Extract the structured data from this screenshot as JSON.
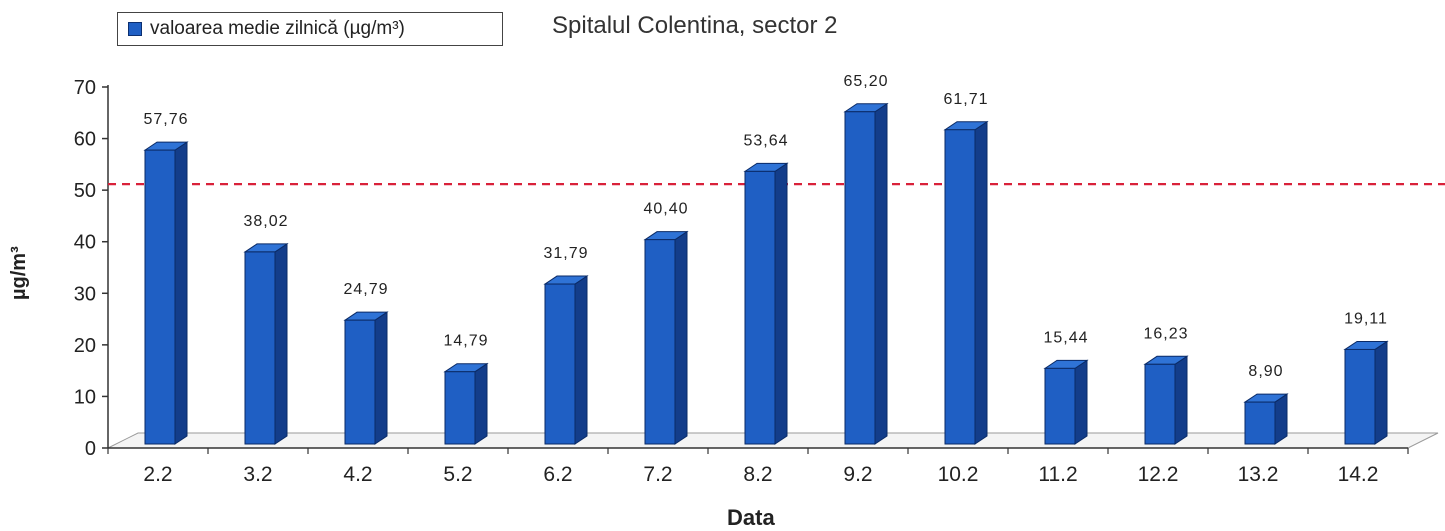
{
  "chart_data": {
    "type": "bar",
    "title": "Spitalul Colentina, sector 2",
    "xlabel": "Data",
    "ylabel": "µg/m³",
    "ylim": [
      0,
      70
    ],
    "yticks": [
      0,
      10,
      20,
      30,
      40,
      50,
      60,
      70
    ],
    "categories": [
      "2.2",
      "3.2",
      "4.2",
      "5.2",
      "6.2",
      "7.2",
      "8.2",
      "9.2",
      "10.2",
      "11.2",
      "12.2",
      "13.2",
      "14.2"
    ],
    "series": [
      {
        "name": "valoarea medie zilnică (µg/m³)",
        "values": [
          57.76,
          38.02,
          24.79,
          14.79,
          31.79,
          40.4,
          53.64,
          65.2,
          61.71,
          15.44,
          16.23,
          8.9,
          19.11
        ],
        "labels": [
          "57,76",
          "38,02",
          "24,79",
          "14,79",
          "31,79",
          "40,40",
          "53,64",
          "65,20",
          "61,71",
          "15,44",
          "16,23",
          "8,90",
          "19,11"
        ]
      }
    ],
    "reference_line": {
      "value": 50,
      "style": "dashed",
      "color": "#d9213a"
    },
    "legend": {
      "position": "top-left"
    },
    "colors": {
      "bar_front": "#1f5fc4",
      "bar_side": "#133d8a",
      "bar_top": "#2f73d6",
      "bar_edge": "#0a2a66"
    }
  }
}
